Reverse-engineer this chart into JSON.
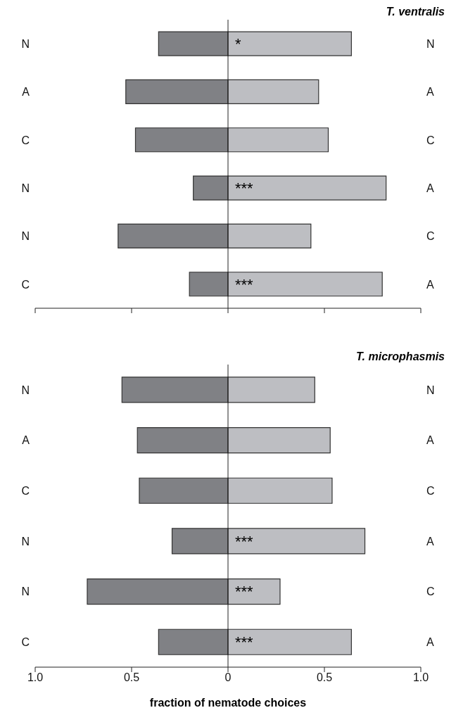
{
  "chart_data": [
    {
      "type": "bar",
      "orientation": "horizontal",
      "stacked": true,
      "title": "T. ventralis",
      "categories": [
        "N",
        "A",
        "C",
        "N",
        "N",
        "C"
      ],
      "y2_categories": [
        "N",
        "A",
        "C",
        "A",
        "C",
        "A"
      ],
      "series": [
        {
          "color": "#808185",
          "values": [
            -0.36,
            -0.53,
            -0.48,
            -0.18,
            -0.57,
            -0.2
          ]
        },
        {
          "color": "#bdbec2",
          "values": [
            0.64,
            0.47,
            0.52,
            0.82,
            0.43,
            0.8
          ],
          "value_labels": [
            "*",
            null,
            null,
            "***",
            null,
            "***"
          ]
        }
      ],
      "xlim": [
        -1,
        1
      ],
      "xticks": [
        {
          "value": -1,
          "label": null
        },
        {
          "value": -0.5,
          "label": null
        },
        {
          "value": 0,
          "label": null
        },
        {
          "value": 0.5,
          "label": null
        },
        {
          "value": 1,
          "label": null
        }
      ],
      "tick_labels": "y"
    },
    {
      "type": "bar",
      "orientation": "horizontal",
      "stacked": true,
      "title": "T. microphasmis",
      "xlabel": "fraction of nematode choices",
      "categories": [
        "N",
        "A",
        "C",
        "N",
        "N",
        "C"
      ],
      "y2_categories": [
        "N",
        "A",
        "C",
        "A",
        "C",
        "A"
      ],
      "series": [
        {
          "color": "#808185",
          "values": [
            -0.55,
            -0.47,
            -0.46,
            -0.29,
            -0.73,
            -0.36
          ]
        },
        {
          "color": "#bdbec2",
          "values": [
            0.45,
            0.53,
            0.54,
            0.71,
            0.27,
            0.64
          ],
          "value_labels": [
            null,
            null,
            null,
            "***",
            "***",
            "***"
          ]
        }
      ],
      "xlim": [
        -1,
        1
      ],
      "xticks": [
        {
          "value": -1,
          "label": "1.0"
        },
        {
          "value": -0.5,
          "label": "0.5"
        },
        0,
        0.5,
        {
          "value": 1,
          "label": "1.0"
        }
      ]
    }
  ]
}
